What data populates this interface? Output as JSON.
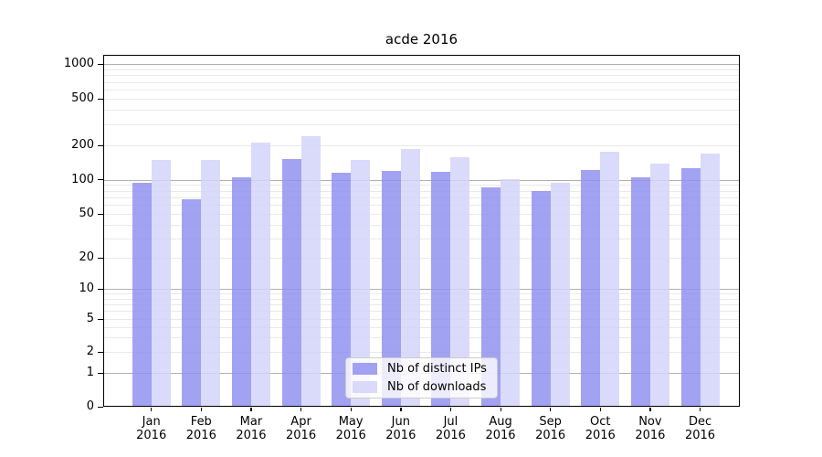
{
  "title": "acde 2016",
  "chart_data": {
    "type": "bar",
    "title": "acde 2016",
    "year_label": "2016",
    "categories": [
      "Jan",
      "Feb",
      "Mar",
      "Apr",
      "May",
      "Jun",
      "Jul",
      "Aug",
      "Sep",
      "Oct",
      "Nov",
      "Dec"
    ],
    "series": [
      {
        "name": "Nb of distinct IPs",
        "color": "rgba(146,146,241,0.85)",
        "values": [
          93,
          67,
          104,
          152,
          114,
          120,
          116,
          85,
          80,
          122,
          105,
          126
        ]
      },
      {
        "name": "Nb of downloads",
        "color": "rgba(212,212,249,0.85)",
        "values": [
          150,
          150,
          212,
          239,
          148,
          186,
          158,
          101,
          93,
          175,
          138,
          168
        ]
      }
    ],
    "xlabel": "",
    "ylabel": "",
    "yscale": "symlog",
    "ylim": [
      0,
      1200
    ],
    "yticks": [
      0,
      1,
      2,
      5,
      10,
      20,
      50,
      100,
      200,
      500,
      1000
    ],
    "grid": {
      "major_values": [
        1,
        10,
        100,
        1000
      ],
      "minor_values": [
        2,
        3,
        4,
        5,
        6,
        7,
        8,
        9,
        20,
        30,
        40,
        50,
        60,
        70,
        80,
        90,
        200,
        300,
        400,
        500,
        600,
        700,
        800,
        900
      ],
      "major_color": "#b0b0b0",
      "minor_color": "#e9e9e9"
    },
    "legend_position": "lower center"
  }
}
